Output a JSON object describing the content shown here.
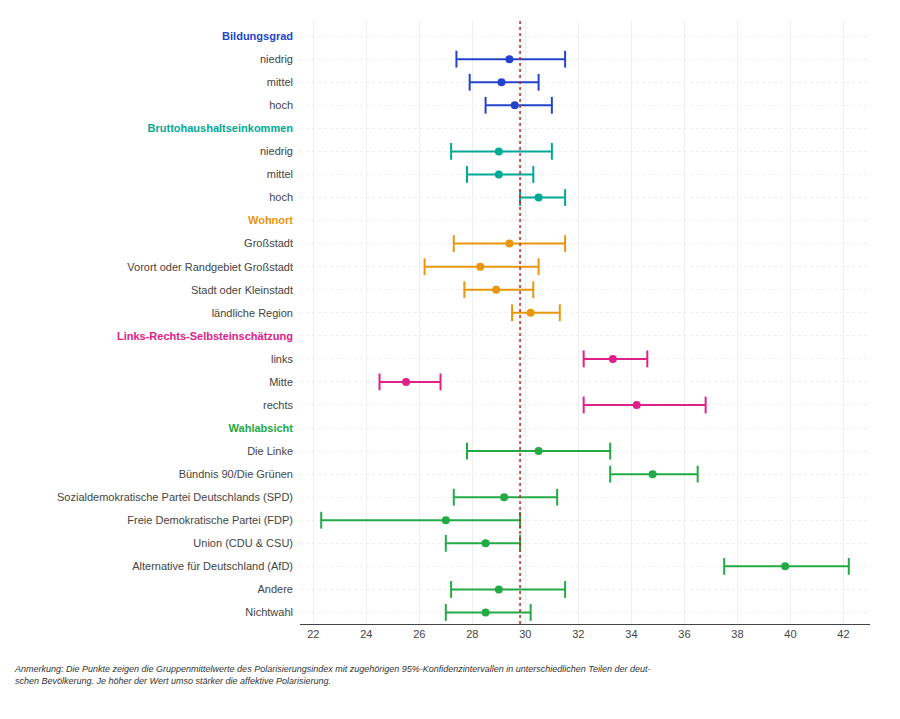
{
  "chart_data": {
    "type": "dot_plot",
    "categories": [
      "Bildungsgrad",
      "niedrig",
      "mittel",
      "hoch",
      "Bruttohaushaltseinkommen",
      "niedrig",
      "mittel",
      "hoch",
      "Wohnort",
      "Großstadt",
      "Vorort oder Randgebiet Großstadt",
      "Stadt oder Kleinstadt",
      "ländliche Region",
      "Links-Rechts-Selbsteinschätzung",
      "links",
      "Mitte",
      "rechts",
      "Wahlabsicht",
      "Die Linke",
      "Bündnis 90/Die Grünen",
      "Sozialdemokratische Partei Deutschlands (SPD)",
      "Freie Demokratische Partei (FDP)",
      "Union (CDU & CSU)",
      "Alternative für Deutschland (AfD)",
      "Andere",
      "Nichtwahl"
    ],
    "values": [
      null,
      29.4,
      29.1,
      29.6,
      null,
      29.0,
      29.0,
      30.5,
      null,
      29.4,
      28.3,
      28.9,
      30.2,
      null,
      33.3,
      25.5,
      34.2,
      null,
      30.5,
      34.8,
      29.2,
      27.0,
      28.5,
      39.8,
      29.0,
      28.5
    ],
    "ci_low": [
      null,
      27.4,
      27.9,
      28.5,
      null,
      27.2,
      27.8,
      29.8,
      null,
      27.3,
      26.2,
      27.7,
      29.5,
      null,
      32.2,
      24.5,
      32.2,
      null,
      27.8,
      33.2,
      27.3,
      22.3,
      27.0,
      37.5,
      27.2,
      27.0
    ],
    "ci_high": [
      null,
      31.5,
      30.5,
      31.0,
      null,
      31.0,
      30.3,
      31.5,
      null,
      31.5,
      30.5,
      30.3,
      31.3,
      null,
      34.6,
      26.8,
      36.8,
      null,
      33.2,
      36.5,
      31.2,
      29.8,
      29.8,
      42.2,
      31.5,
      30.2
    ],
    "colors": [
      "#2244cc",
      "#2244cc",
      "#2244cc",
      "#2244cc",
      "#00a896",
      "#00a896",
      "#00a896",
      "#00a896",
      "#e8960c",
      "#e8960c",
      "#e8960c",
      "#e8960c",
      "#e8960c",
      "#e0208a",
      "#e0208a",
      "#e0208a",
      "#e0208a",
      "#22aa44",
      "#22aa44",
      "#22aa44",
      "#22aa44",
      "#22aa44",
      "#22aa44",
      "#22aa44",
      "#22aa44",
      "#22aa44"
    ],
    "ref_line": {
      "value": 29.8,
      "color": "#cc2222",
      "line_style": "dot"
    },
    "xlim": [
      21.5,
      43.0
    ],
    "xticks": [
      22,
      24,
      26,
      28,
      30,
      32,
      34,
      36,
      38,
      40,
      42
    ],
    "grid": true,
    "footnote": [
      "Anmerkung: Die Punkte zeigen die Gruppenmittelwerte des Polarisierungsindex mit zugehörigen 95%-Konfidenzintervallen in unterschiedlichen Teilen der deut-",
      "schen Bevölkerung. Je höher der Wert umso stärker die affektive Polarisierung."
    ]
  }
}
